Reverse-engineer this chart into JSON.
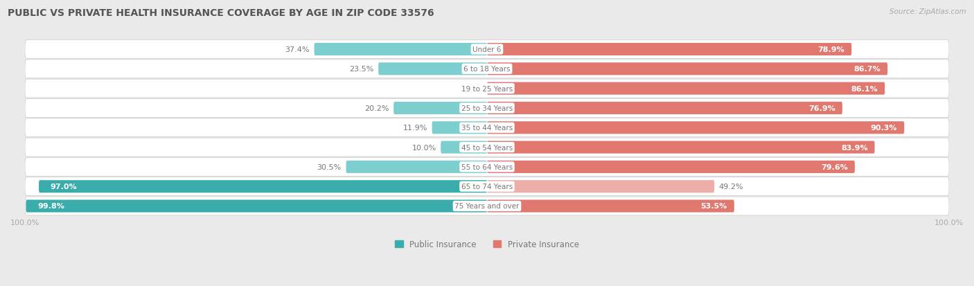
{
  "title": "PUBLIC VS PRIVATE HEALTH INSURANCE COVERAGE BY AGE IN ZIP CODE 33576",
  "source": "Source: ZipAtlas.com",
  "categories": [
    "Under 6",
    "6 to 18 Years",
    "19 to 25 Years",
    "25 to 34 Years",
    "35 to 44 Years",
    "45 to 54 Years",
    "55 to 64 Years",
    "65 to 74 Years",
    "75 Years and over"
  ],
  "public_values": [
    37.4,
    23.5,
    0.0,
    20.2,
    11.9,
    10.0,
    30.5,
    97.0,
    99.8
  ],
  "private_values": [
    78.9,
    86.7,
    86.1,
    76.9,
    90.3,
    83.9,
    79.6,
    49.2,
    53.5
  ],
  "public_color_dark": "#3AACAC",
  "public_color_light": "#7DCFCF",
  "private_color_dark": "#E07870",
  "private_color_light": "#EDADA8",
  "bg_color": "#EAEAEA",
  "row_bg": "#FFFFFF",
  "row_border": "#CCCCCC",
  "title_color": "#555555",
  "text_white": "#FFFFFF",
  "text_dark": "#777777",
  "axis_label_color": "#AAAAAA",
  "max_val": 100.0,
  "figsize": [
    14.06,
    4.14
  ],
  "dpi": 100,
  "title_fontsize": 10,
  "bar_fontsize": 8,
  "legend_fontsize": 8.5,
  "source_fontsize": 7.5
}
